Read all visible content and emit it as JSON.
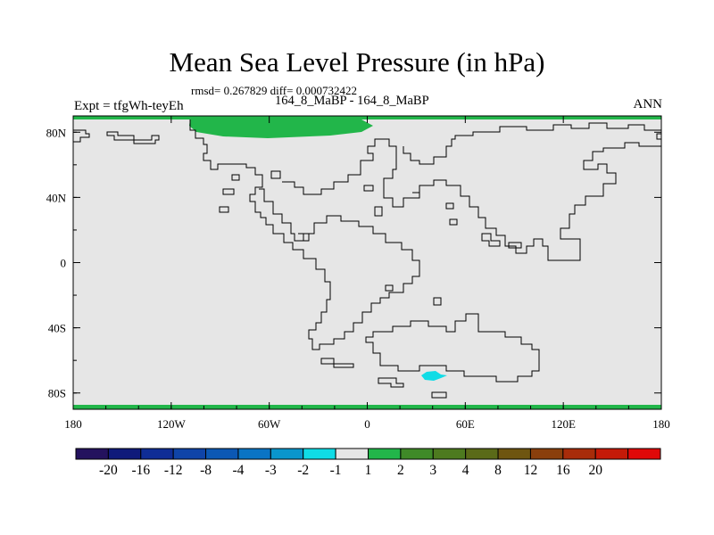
{
  "title": "Mean Sea Level Pressure (in hPa)",
  "stats_line": "rmsd= 0.267829 diff= 0.000732422",
  "experiment_label": "Expt = tfgWh-teyEh",
  "experiment_names": "164_8_MaBP - 164_8_MaBP",
  "season": "ANN",
  "map": {
    "lon_range": [
      -180,
      180
    ],
    "lat_range": [
      -90,
      90
    ],
    "x_ticks": [
      "180",
      "120W",
      "60W",
      "0",
      "60E",
      "120E",
      "180"
    ],
    "y_ticks": [
      "80N",
      "40N",
      "0",
      "40S",
      "80S"
    ],
    "background_color": "#e6e6e6",
    "coast_color": "#000000"
  },
  "colorbar": {
    "colors": [
      "#24125e",
      "#0f1a7a",
      "#0f2d96",
      "#0f44a8",
      "#0c58b4",
      "#0a74c4",
      "#0a96cc",
      "#10dce6",
      "#e6e6e6",
      "#22b64a",
      "#3f8a28",
      "#4d7a1f",
      "#5a6a18",
      "#6e5510",
      "#8a3f0c",
      "#a82c0a",
      "#c41a08",
      "#e00808"
    ],
    "labels": [
      "-20",
      "-16",
      "-12",
      "-8",
      "-4",
      "-3",
      "-2",
      "-1",
      "1",
      "2",
      "3",
      "4",
      "8",
      "12",
      "16",
      "20"
    ]
  }
}
